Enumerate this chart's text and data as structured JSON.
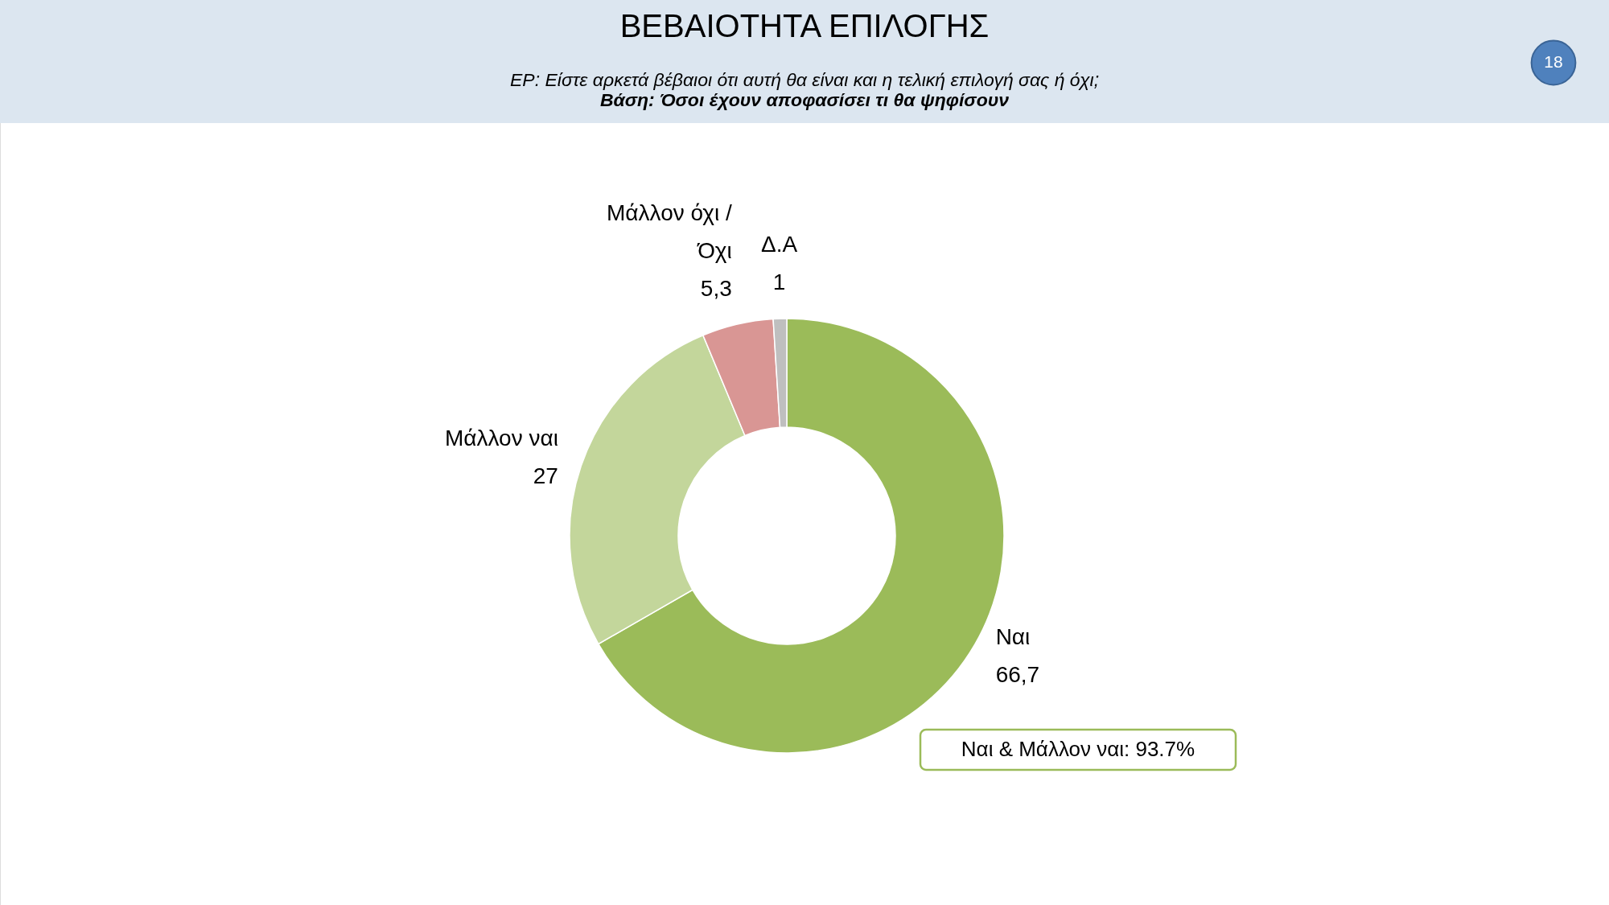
{
  "chart_data": {
    "type": "donut",
    "title": "ΒΕΒΑΙΟΤΗΤΑ ΕΠΙΛΟΓΗΣ",
    "subtitle": "ΕΡ: Είστε αρκετά βέβαιοι ότι αυτή θα είναι και η τελική  επιλογή σας ή  όχι;",
    "categories": [
      "Ναι",
      "Μάλλον ναι",
      "Μάλλον όχι / Όχι",
      "Δ.Α"
    ],
    "values": [
      66.7,
      27,
      5.3,
      1
    ],
    "colors": [
      "#9bbb59",
      "#c3d69b",
      "#d99694",
      "#bfbfbf"
    ],
    "value_labels": [
      "66,7",
      "27",
      "5,3",
      "1"
    ],
    "annotations": [
      "Βάση: Όσοι έχουν αποφασίσει τι θα ψηφίσουν",
      "Ναι & Μάλλον ναι: 93.7%",
      "18"
    ]
  }
}
